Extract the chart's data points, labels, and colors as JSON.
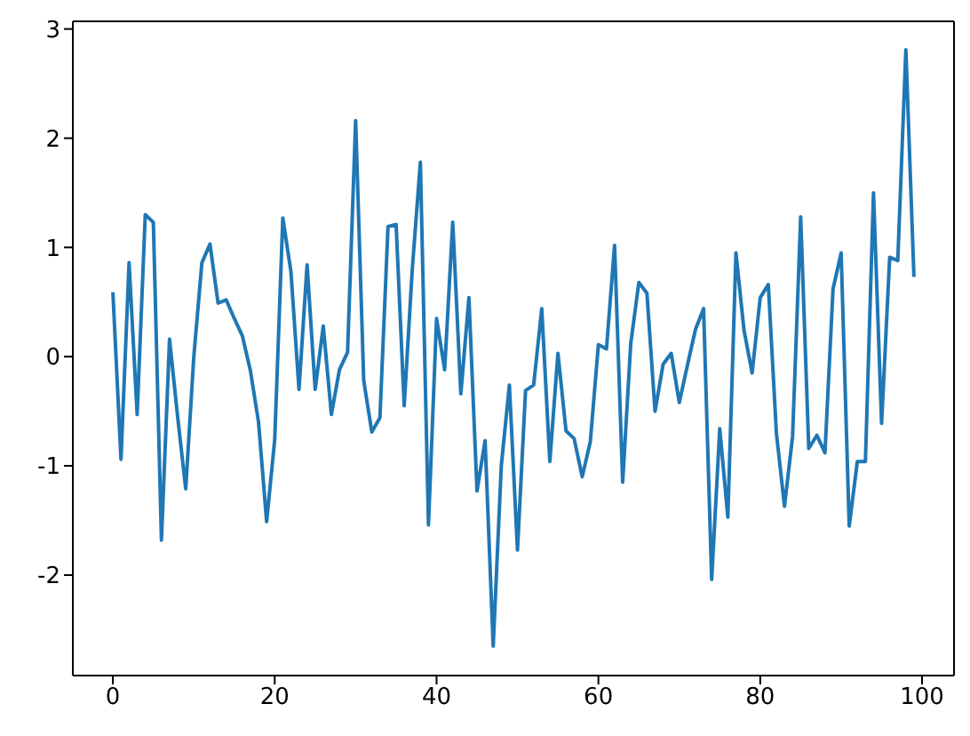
{
  "chart_data": {
    "type": "line",
    "x": [
      0,
      1,
      2,
      3,
      4,
      5,
      6,
      7,
      8,
      9,
      10,
      11,
      12,
      13,
      14,
      15,
      16,
      17,
      18,
      19,
      20,
      21,
      22,
      23,
      24,
      25,
      26,
      27,
      28,
      29,
      30,
      31,
      32,
      33,
      34,
      35,
      36,
      37,
      38,
      39,
      40,
      41,
      42,
      43,
      44,
      45,
      46,
      47,
      48,
      49,
      50,
      51,
      52,
      53,
      54,
      55,
      56,
      57,
      58,
      59,
      60,
      61,
      62,
      63,
      64,
      65,
      66,
      67,
      68,
      69,
      70,
      71,
      72,
      73,
      74,
      75,
      76,
      77,
      78,
      79,
      80,
      81,
      82,
      83,
      84,
      85,
      86,
      87,
      88,
      89,
      90,
      91,
      92,
      93,
      94,
      95,
      96,
      97,
      98,
      99
    ],
    "values": [
      0.59,
      -0.94,
      0.86,
      -0.53,
      1.3,
      1.23,
      -1.68,
      0.16,
      -0.55,
      -1.21,
      0.0,
      0.86,
      1.03,
      0.49,
      0.52,
      0.35,
      0.19,
      -0.13,
      -0.6,
      -1.51,
      -0.76,
      1.27,
      0.78,
      -0.3,
      0.84,
      -0.3,
      0.28,
      -0.53,
      -0.12,
      0.04,
      2.16,
      -0.22,
      -0.69,
      -0.56,
      1.19,
      1.21,
      -0.45,
      0.8,
      1.78,
      -1.54,
      0.35,
      -0.12,
      1.23,
      -0.34,
      0.54,
      -1.23,
      -0.77,
      -2.65,
      -1.0,
      -0.26,
      -1.77,
      -0.31,
      -0.26,
      0.44,
      -0.96,
      0.03,
      -0.68,
      -0.75,
      -1.1,
      -0.78,
      0.11,
      0.07,
      1.02,
      -1.15,
      0.12,
      0.68,
      0.58,
      -0.5,
      -0.07,
      0.03,
      -0.42,
      -0.08,
      0.25,
      0.44,
      -2.04,
      -0.66,
      -1.47,
      0.95,
      0.24,
      -0.15,
      0.54,
      0.66,
      -0.7,
      -1.37,
      -0.73,
      1.28,
      -0.84,
      -0.72,
      -0.88,
      0.62,
      0.95,
      -1.55,
      -0.96,
      -0.96,
      1.5,
      -0.61,
      0.91,
      0.88,
      2.81,
      0.73
    ],
    "color": "#1f77b4",
    "xlim": [
      -4.95,
      103.95
    ],
    "xticks": [
      0,
      20,
      40,
      60,
      80,
      100
    ],
    "ylim": [
      -2.92,
      3.07
    ],
    "yticks": [
      -2,
      -1,
      0,
      1,
      2,
      3
    ]
  }
}
